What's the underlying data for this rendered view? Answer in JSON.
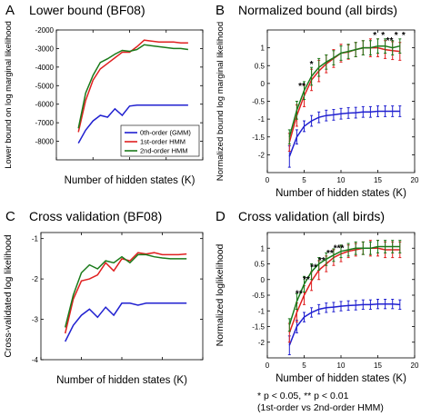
{
  "colors": {
    "order0": "#2020d0",
    "order1": "#e02020",
    "order2": "#1a7a1a"
  },
  "footnote": {
    "line1": "* p < 0.05, ** p < 0.01",
    "line2": "(1st-order vs 2nd-order HMM)"
  },
  "chart_data": [
    {
      "id": "A",
      "letter": "A",
      "type": "line",
      "title": "Lower bound (BF08)",
      "xlabel": "Number of hidden states (K)",
      "ylabel": "Lower bound on log marginal likelihood",
      "xlim": [
        0,
        20
      ],
      "ylim": [
        -9000,
        -2000
      ],
      "xticks": [
        0,
        5,
        10,
        15,
        20
      ],
      "yticks": [
        -2000,
        -3000,
        -4000,
        -5000,
        -6000,
        -7000,
        -8000
      ],
      "yticklabels": [
        "-2000",
        "-3000",
        "-4000",
        "-5000",
        "-6000",
        "-7000",
        "-8000"
      ],
      "show_xticklabels": false,
      "grid": false,
      "legend": {
        "placement": "bottom-right",
        "entries": [
          "0th-order (GMM)",
          "1st-order HMM",
          "2nd-order HMM"
        ]
      },
      "x": [
        3,
        4,
        5,
        6,
        7,
        8,
        9,
        10,
        11,
        12,
        13,
        14,
        15,
        16,
        17,
        18
      ],
      "series": [
        {
          "name": "0th-order (GMM)",
          "color_key": "order0",
          "values": [
            -8100,
            -7400,
            -6900,
            -6600,
            -6700,
            -6250,
            -6600,
            -6100,
            -6050,
            -6050,
            -6050,
            -6050,
            -6050,
            -6050,
            -6050,
            -6050
          ]
        },
        {
          "name": "1st-order HMM",
          "color_key": "order1",
          "values": [
            -7500,
            -5800,
            -4700,
            -4100,
            -3800,
            -3500,
            -3200,
            -3200,
            -2900,
            -2550,
            -2600,
            -2650,
            -2650,
            -2650,
            -2700,
            -2700
          ]
        },
        {
          "name": "2nd-order HMM",
          "color_key": "order2",
          "values": [
            -7300,
            -5400,
            -4450,
            -3750,
            -3550,
            -3300,
            -3100,
            -3150,
            -3050,
            -2800,
            -2850,
            -2900,
            -2950,
            -3000,
            -3000,
            -3050
          ]
        }
      ]
    },
    {
      "id": "B",
      "letter": "B",
      "type": "line",
      "title": "Normalized bound (all birds)",
      "xlabel": "Number of hidden states (K)",
      "ylabel": "Normalized bound log marginal likelihood",
      "xlim": [
        0,
        20
      ],
      "ylim": [
        -2.5,
        1.5
      ],
      "xticks": [
        0,
        5,
        10,
        15,
        20
      ],
      "yticks": [
        1,
        0.5,
        0,
        -0.5,
        -1,
        -1.5,
        -2
      ],
      "yticklabels": [
        "1",
        "0.5",
        "0",
        "-0.5",
        "-1",
        "-1.5",
        "-2"
      ],
      "show_xticklabels": true,
      "grid": false,
      "error_bars": true,
      "x": [
        3,
        4,
        5,
        6,
        7,
        8,
        9,
        10,
        11,
        12,
        13,
        14,
        15,
        16,
        17,
        18
      ],
      "series": [
        {
          "name": "",
          "color_key": "order0",
          "values": [
            -2.05,
            -1.5,
            -1.2,
            -1.05,
            -0.95,
            -0.9,
            -0.88,
            -0.85,
            -0.83,
            -0.82,
            -0.8,
            -0.8,
            -0.78,
            -0.78,
            -0.78,
            -0.78
          ],
          "err": [
            0.3,
            0.2,
            0.15,
            0.15,
            0.15,
            0.15,
            0.15,
            0.15,
            0.15,
            0.15,
            0.15,
            0.15,
            0.15,
            0.15,
            0.15,
            0.15
          ]
        },
        {
          "name": "",
          "color_key": "order1",
          "values": [
            -1.65,
            -0.9,
            -0.35,
            0.1,
            0.35,
            0.55,
            0.7,
            0.85,
            0.88,
            0.95,
            1.0,
            1.0,
            1.0,
            0.95,
            0.92,
            0.9
          ],
          "err": [
            0.25,
            0.3,
            0.3,
            0.3,
            0.3,
            0.25,
            0.25,
            0.25,
            0.2,
            0.2,
            0.2,
            0.25,
            0.25,
            0.25,
            0.25,
            0.25
          ]
        },
        {
          "name": "",
          "color_key": "order2",
          "values": [
            -1.5,
            -0.75,
            -0.2,
            0.2,
            0.45,
            0.6,
            0.72,
            0.85,
            0.9,
            0.95,
            1.0,
            1.0,
            1.05,
            1.05,
            1.0,
            1.05
          ],
          "err": [
            0.2,
            0.25,
            0.25,
            0.25,
            0.25,
            0.2,
            0.2,
            0.2,
            0.2,
            0.2,
            0.2,
            0.2,
            0.2,
            0.2,
            0.2,
            0.2
          ]
        }
      ],
      "annotations": [
        {
          "x": 4.7,
          "y": -0.15,
          "text": "**"
        },
        {
          "x": 6,
          "y": 0.45,
          "text": "*"
        },
        {
          "x": 14.6,
          "y": 1.27,
          "text": "*"
        },
        {
          "x": 15.7,
          "y": 1.27,
          "text": "*"
        },
        {
          "x": 17.5,
          "y": 1.27,
          "text": "*"
        },
        {
          "x": 16.6,
          "y": 1.12,
          "text": "**"
        },
        {
          "x": 18.5,
          "y": 1.27,
          "text": "*"
        }
      ]
    },
    {
      "id": "C",
      "letter": "C",
      "type": "line",
      "title": "Cross validation (BF08)",
      "xlabel": "Number of hidden states (K)",
      "ylabel": "Cross-validated log likelihood",
      "xlim": [
        0,
        20
      ],
      "ylim": [
        -4,
        -0.85
      ],
      "xticks": [
        0,
        5,
        10,
        15,
        20
      ],
      "yticks": [
        -1,
        -2,
        -3,
        -4
      ],
      "yticklabels": [
        "-1",
        "-2",
        "-3",
        "-4"
      ],
      "show_xticklabels": false,
      "grid": false,
      "x": [
        3,
        4,
        5,
        6,
        7,
        8,
        9,
        10,
        11,
        12,
        13,
        14,
        15,
        16,
        17,
        18
      ],
      "series": [
        {
          "name": "",
          "color_key": "order0",
          "values": [
            -3.55,
            -3.15,
            -2.9,
            -2.75,
            -2.95,
            -2.7,
            -2.9,
            -2.6,
            -2.6,
            -2.65,
            -2.6,
            -2.6,
            -2.6,
            -2.6,
            -2.6,
            -2.6
          ]
        },
        {
          "name": "",
          "color_key": "order1",
          "values": [
            -3.35,
            -2.5,
            -2.05,
            -2.0,
            -1.9,
            -1.6,
            -1.8,
            -1.5,
            -1.55,
            -1.35,
            -1.38,
            -1.35,
            -1.4,
            -1.4,
            -1.4,
            -1.38
          ]
        },
        {
          "name": "",
          "color_key": "order2",
          "values": [
            -3.2,
            -2.4,
            -1.85,
            -1.65,
            -1.75,
            -1.55,
            -1.6,
            -1.45,
            -1.6,
            -1.4,
            -1.4,
            -1.45,
            -1.48,
            -1.5,
            -1.5,
            -1.5
          ]
        }
      ]
    },
    {
      "id": "D",
      "letter": "D",
      "type": "line",
      "title": "Cross validation (all birds)",
      "xlabel": "Number of hidden states (K)",
      "ylabel": "Normalized loglikelihood",
      "xlim": [
        0,
        20
      ],
      "ylim": [
        -2.5,
        1.5
      ],
      "xticks": [
        0,
        5,
        10,
        15,
        20
      ],
      "yticks": [
        1,
        0.5,
        0,
        -0.5,
        -1,
        -1.5,
        -2
      ],
      "yticklabels": [
        "1",
        "0.5",
        "0",
        "-0.5",
        "-1",
        "-1.5",
        "-2"
      ],
      "show_xticklabels": true,
      "grid": false,
      "error_bars": true,
      "x": [
        3,
        4,
        5,
        6,
        7,
        8,
        9,
        10,
        11,
        12,
        13,
        14,
        15,
        16,
        17,
        18
      ],
      "series": [
        {
          "name": "",
          "color_key": "order0",
          "values": [
            -2.1,
            -1.5,
            -1.2,
            -1.05,
            -0.95,
            -0.9,
            -0.88,
            -0.85,
            -0.83,
            -0.82,
            -0.8,
            -0.8,
            -0.78,
            -0.78,
            -0.78,
            -0.8
          ],
          "err": [
            0.3,
            0.2,
            0.15,
            0.15,
            0.15,
            0.15,
            0.15,
            0.15,
            0.15,
            0.15,
            0.15,
            0.15,
            0.15,
            0.15,
            0.15,
            0.15
          ]
        },
        {
          "name": "",
          "color_key": "order1",
          "values": [
            -1.7,
            -1.05,
            -0.5,
            -0.05,
            0.3,
            0.5,
            0.7,
            0.82,
            0.9,
            0.95,
            1.0,
            1.0,
            1.0,
            0.95,
            0.95,
            0.95
          ],
          "err": [
            0.3,
            0.3,
            0.3,
            0.3,
            0.3,
            0.25,
            0.25,
            0.25,
            0.2,
            0.2,
            0.2,
            0.25,
            0.25,
            0.25,
            0.25,
            0.25
          ]
        },
        {
          "name": "",
          "color_key": "order2",
          "values": [
            -1.45,
            -0.7,
            -0.15,
            0.25,
            0.5,
            0.65,
            0.78,
            0.9,
            0.95,
            1.0,
            1.0,
            1.0,
            1.05,
            1.05,
            1.05,
            1.05
          ],
          "err": [
            0.2,
            0.25,
            0.25,
            0.25,
            0.2,
            0.2,
            0.2,
            0.2,
            0.2,
            0.2,
            0.2,
            0.2,
            0.2,
            0.2,
            0.2,
            0.2
          ]
        }
      ],
      "annotations": [
        {
          "x": 4.3,
          "y": -0.55,
          "text": "**"
        },
        {
          "x": 5.3,
          "y": -0.1,
          "text": "**"
        },
        {
          "x": 6.3,
          "y": 0.3,
          "text": "**"
        },
        {
          "x": 7.4,
          "y": 0.52,
          "text": "**"
        },
        {
          "x": 8.5,
          "y": 0.75,
          "text": "**"
        },
        {
          "x": 9.7,
          "y": 0.9,
          "text": "***"
        }
      ]
    }
  ]
}
